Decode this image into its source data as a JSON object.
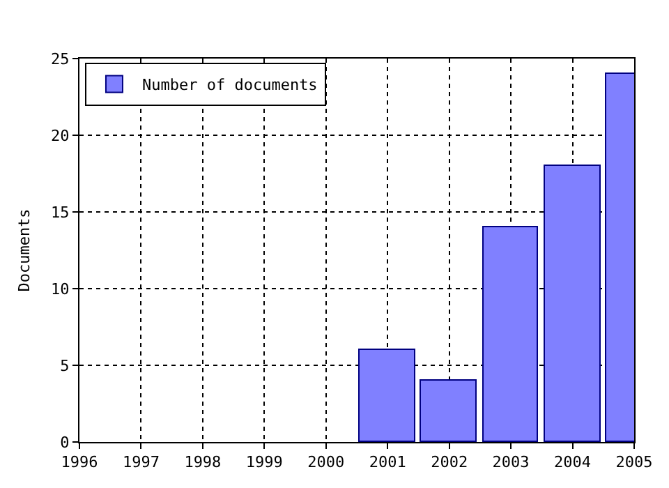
{
  "chart_data": {
    "type": "bar",
    "ylabel": "Documents",
    "x": [
      2001,
      2002,
      2003,
      2004,
      2005
    ],
    "series": [
      {
        "name": "Number of documents",
        "color": "#8080ff",
        "values": [
          6,
          4,
          14,
          18,
          24
        ]
      }
    ],
    "xlim": [
      1996,
      2005
    ],
    "xticks": [
      1996,
      1997,
      1998,
      1999,
      2000,
      2001,
      2002,
      2003,
      2004,
      2005
    ],
    "ylim": [
      0,
      25
    ],
    "yticks": [
      0,
      5,
      10,
      15,
      20,
      25
    ],
    "grid": true,
    "legend": "top left"
  }
}
